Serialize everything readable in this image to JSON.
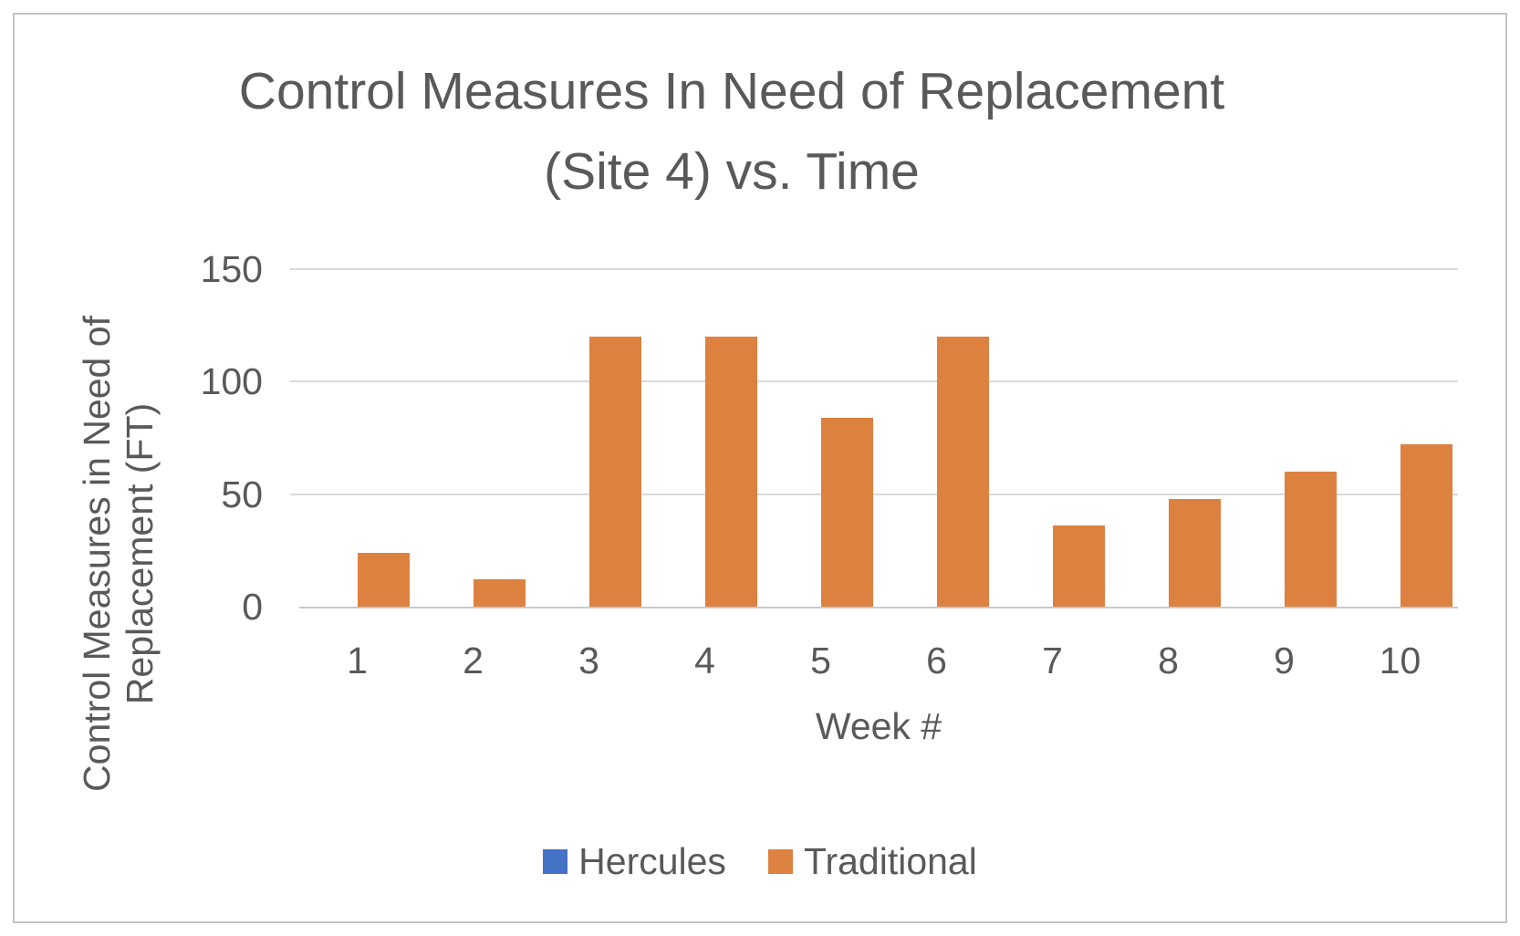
{
  "chart": {
    "title_line1": "Control Measures In Need of Replacement",
    "title_line2": "(Site 4) vs. Time",
    "y_axis_title_line1": "Control Measures in Need of",
    "y_axis_title_line2": "Replacement (FT)",
    "x_axis_title": "Week #",
    "text_color": "#595959",
    "gridline_color": "#D9D9D9",
    "axis_line_color": "#C9C9C9",
    "frame_border_color": "#C4C4C4"
  },
  "legend": {
    "items": [
      {
        "label": "Hercules",
        "color": "#4472C4"
      },
      {
        "label": "Traditional",
        "color": "#DD8140"
      }
    ]
  },
  "chart_data": {
    "type": "bar",
    "title": "Control Measures In Need of Replacement (Site 4) vs. Time",
    "xlabel": "Week #",
    "ylabel": "Control Measures in Need of Replacement (FT)",
    "categories": [
      "1",
      "2",
      "3",
      "4",
      "5",
      "6",
      "7",
      "8",
      "9",
      "10"
    ],
    "series": [
      {
        "name": "Hercules",
        "color": "#4472C4",
        "values": [
          0,
          0,
          0,
          0,
          0,
          0,
          0,
          0,
          0,
          0
        ]
      },
      {
        "name": "Traditional",
        "color": "#DD8140",
        "values": [
          24,
          12,
          120,
          120,
          84,
          120,
          36,
          48,
          60,
          72
        ]
      }
    ],
    "ylim": [
      0,
      150
    ],
    "yticks": [
      0,
      50,
      100,
      150
    ],
    "grid": true,
    "legend_position": "bottom"
  }
}
